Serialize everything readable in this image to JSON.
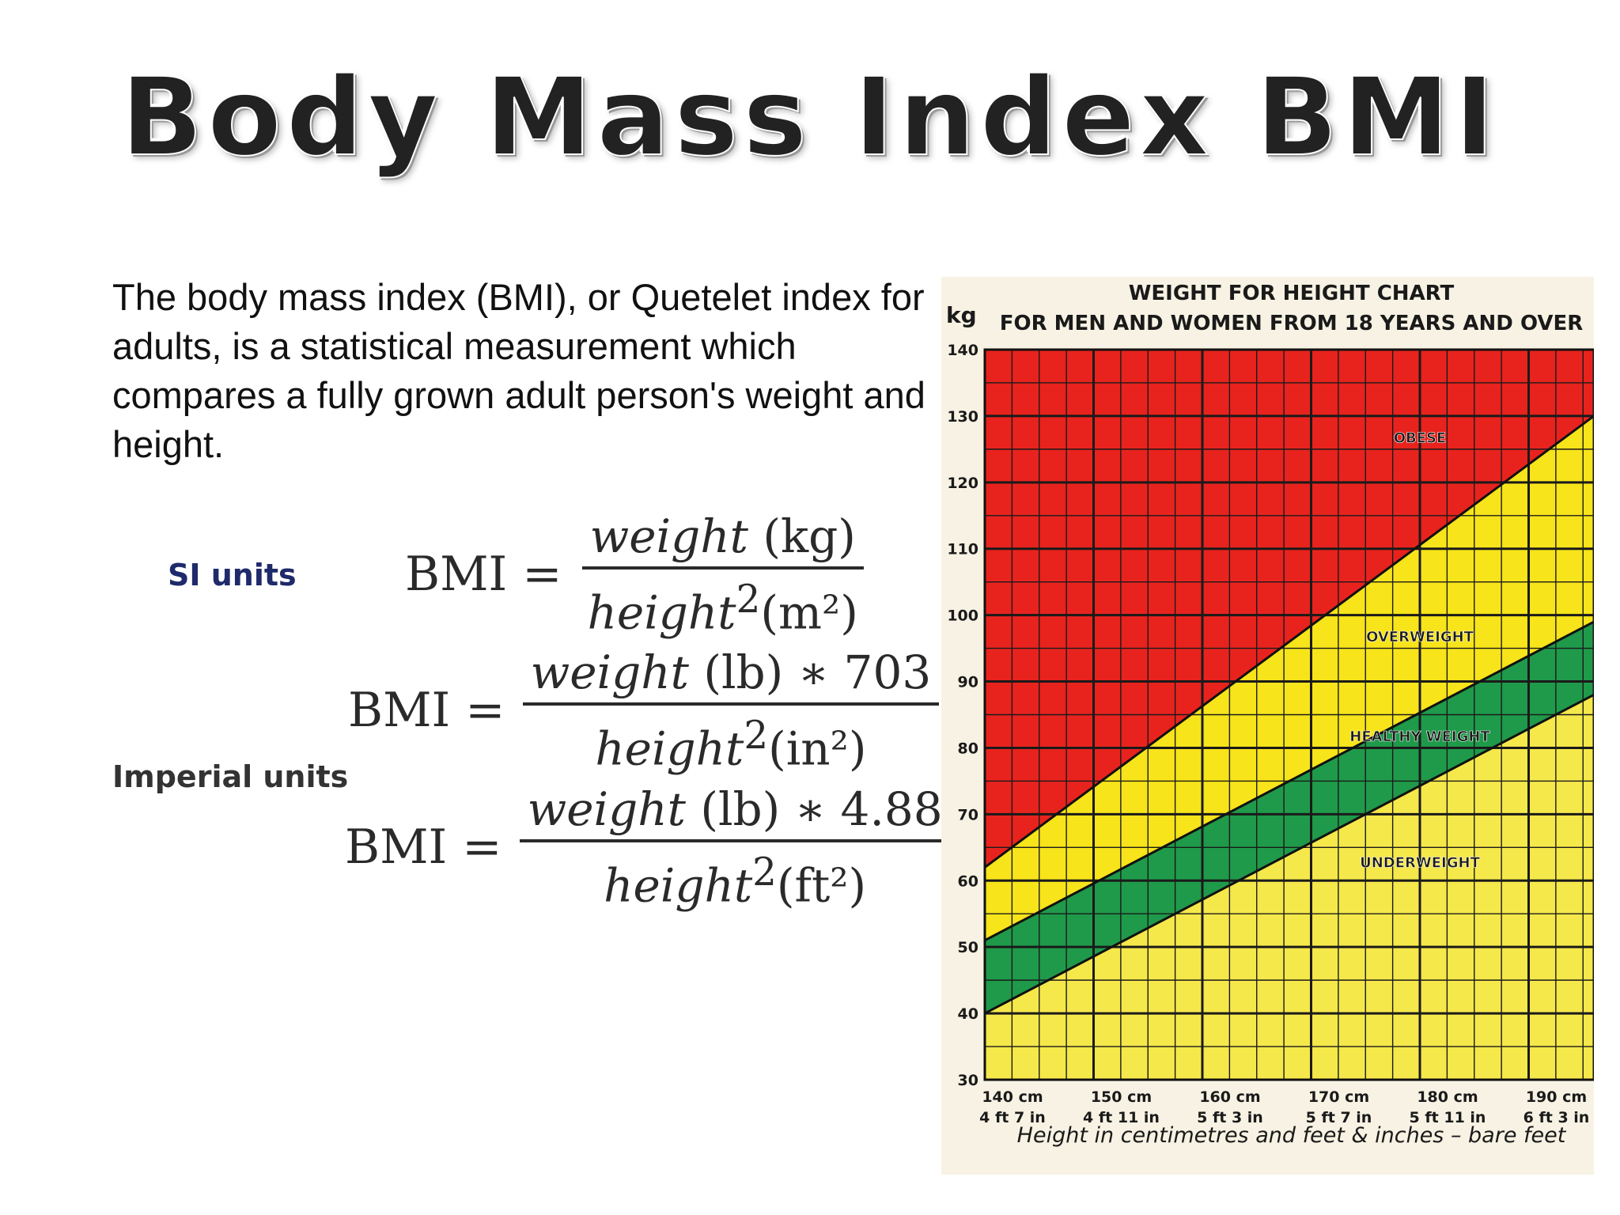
{
  "slide": {
    "title": "Body Mass Index  BMI",
    "intro": "The body mass index (BMI), or Quetelet index for adults, is a statistical measurement which compares a fully grown adult person's weight and height.",
    "si_label": "SI units",
    "imperial_label": "Imperial units"
  },
  "formulas": {
    "lhs": "BMI =",
    "si": {
      "num_var": "weight",
      "num_unit": " (kg)",
      "den_var": "height",
      "den_unit": "(m²)"
    },
    "imp_in": {
      "num_var": "weight",
      "num_unit": " (lb) ∗ 703",
      "den_var": "height",
      "den_unit": "(in²)"
    },
    "imp_ft": {
      "num_var": "weight",
      "num_unit": " (lb) ∗ 4.88",
      "den_var": "height",
      "den_unit": "(ft²)"
    },
    "sq": "2"
  },
  "chart_data": {
    "type": "area",
    "title": "WEIGHT FOR HEIGHT CHART",
    "subtitle": "FOR MEN AND WOMEN FROM 18 YEARS AND OVER",
    "ylabel": "kg",
    "xlabel": "Height in centimetres and feet & inches – bare feet",
    "xlim": [
      140,
      196
    ],
    "ylim": [
      30,
      140
    ],
    "y_ticks": [
      30,
      40,
      50,
      60,
      70,
      80,
      90,
      100,
      110,
      120,
      130,
      140
    ],
    "x_ticks": [
      {
        "value": 140,
        "cm": "140 cm",
        "ftin": "4 ft 7 in"
      },
      {
        "value": 150,
        "cm": "150 cm",
        "ftin": "4 ft 11 in"
      },
      {
        "value": 160,
        "cm": "160 cm",
        "ftin": "5 ft 3 in"
      },
      {
        "value": 170,
        "cm": "170 cm",
        "ftin": "5 ft 7 in"
      },
      {
        "value": 180,
        "cm": "180 cm",
        "ftin": "5 ft 11 in"
      },
      {
        "value": 190,
        "cm": "190 cm",
        "ftin": "6 ft 3 in"
      }
    ],
    "boundaries": [
      {
        "from": [
          140,
          40
        ],
        "to": [
          196,
          88
        ]
      },
      {
        "from": [
          140,
          51
        ],
        "to": [
          196,
          99
        ]
      },
      {
        "from": [
          140,
          62
        ],
        "to": [
          196,
          130
        ]
      }
    ],
    "zones": [
      {
        "label": "UNDERWEIGHT",
        "color": "#f5e84a",
        "label_at": [
          180,
          62
        ]
      },
      {
        "label": "HEALTHY WEIGHT",
        "color": "#1f9a4a",
        "label_at": [
          180,
          81
        ]
      },
      {
        "label": "OVERWEIGHT",
        "color": "#f7e41a",
        "label_at": [
          180,
          96
        ]
      },
      {
        "label": "OBESE",
        "color": "#e8231e",
        "label_at": [
          180,
          126
        ]
      }
    ],
    "grid": true
  }
}
